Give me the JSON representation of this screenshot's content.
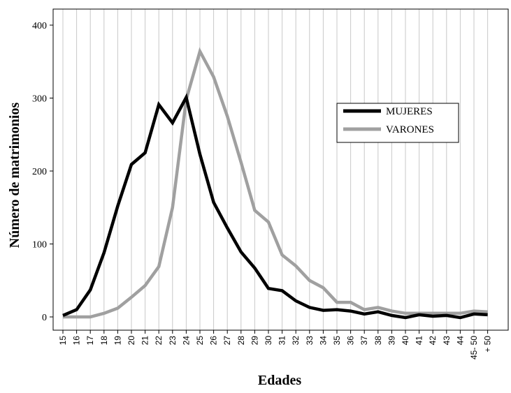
{
  "chart_data": {
    "type": "line",
    "xlabel": "Edades",
    "ylabel": "Número de matrimonios",
    "ylim": [
      0,
      400
    ],
    "yticks": [
      0,
      100,
      200,
      300,
      400
    ],
    "categories": [
      "15",
      "16",
      "17",
      "18",
      "19",
      "20",
      "21",
      "22",
      "23",
      "24",
      "25",
      "26",
      "27",
      "28",
      "29",
      "30",
      "31",
      "32",
      "33",
      "34",
      "35",
      "36",
      "37",
      "38",
      "39",
      "40",
      "41",
      "42",
      "43",
      "44",
      "45- 50",
      "+ 50"
    ],
    "grid": "vertical",
    "legend_position": "center-right",
    "series": [
      {
        "name": "MUJERES",
        "color": "#000000",
        "values": [
          2,
          10,
          37,
          88,
          152,
          209,
          225,
          291,
          266,
          301,
          223,
          157,
          122,
          89,
          67,
          39,
          36,
          22,
          13,
          9,
          10,
          8,
          4,
          7,
          2,
          -1,
          3,
          1,
          2,
          -1,
          4,
          3
        ]
      },
      {
        "name": "VARONES",
        "color": "#a0a0a0",
        "values": [
          0,
          0,
          0,
          5,
          12,
          27,
          43,
          69,
          150,
          298,
          364,
          329,
          275,
          212,
          146,
          130,
          85,
          70,
          50,
          40,
          20,
          20,
          10,
          13,
          8,
          5,
          5,
          5,
          5,
          5,
          8,
          7
        ]
      }
    ]
  }
}
